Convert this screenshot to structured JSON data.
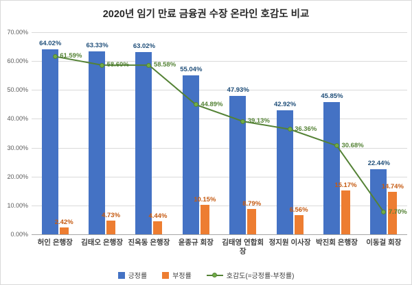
{
  "title": "2020년 임기 만료 금융권 수장 온라인 호감도 비교",
  "chart_data": {
    "type": "bar",
    "subtype": "grouped bars with line overlay",
    "title": "2020년 임기 만료 금융권 수장 온라인 호감도 비교",
    "categories": [
      "허인 은행장",
      "김태오 은행장",
      "진옥동 은행장",
      "윤종규 회장",
      "김태영 연합회장",
      "정지원 이사장",
      "박진회 은행장",
      "이동걸 회장"
    ],
    "series": [
      {
        "name": "긍정률",
        "type": "bar",
        "color": "#4472c4",
        "label_color": "#1f4e79",
        "values": [
          64.02,
          63.33,
          63.02,
          55.04,
          47.93,
          42.92,
          45.85,
          22.44
        ]
      },
      {
        "name": "부정률",
        "type": "bar",
        "color": "#ed7d31",
        "label_color": "#c55a11",
        "values": [
          2.42,
          4.73,
          4.44,
          10.15,
          8.79,
          6.56,
          15.17,
          14.74
        ]
      },
      {
        "name": "호감도(=긍정률-부정률)",
        "type": "line",
        "color": "#548235",
        "marker_fill": "#70ad47",
        "label_color": "#548235",
        "values": [
          61.59,
          58.6,
          58.58,
          44.89,
          39.13,
          36.36,
          30.68,
          7.7
        ]
      }
    ],
    "value_suffix": "%",
    "xlabel": "",
    "ylabel": "",
    "ylim": [
      0,
      70
    ],
    "ytick_step": 10,
    "yticks": [
      "0.00%",
      "10.00%",
      "20.00%",
      "30.00%",
      "40.00%",
      "50.00%",
      "60.00%",
      "70.00%"
    ],
    "grid": true,
    "legend_position": "bottom"
  }
}
